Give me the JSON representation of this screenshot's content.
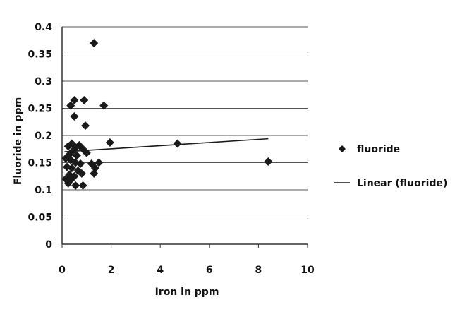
{
  "chart_data": {
    "type": "scatter",
    "xlabel": "Iron in ppm",
    "ylabel": "Fluoride in ppm",
    "xlim": [
      0,
      10
    ],
    "ylim": [
      0,
      0.4
    ],
    "x_ticks": [
      0,
      2,
      4,
      6,
      8,
      10
    ],
    "y_ticks": [
      0,
      0.05,
      0.1,
      0.15,
      0.2,
      0.25,
      0.3,
      0.35,
      0.4
    ],
    "x_tick_labels": [
      "0",
      "2",
      "4",
      "6",
      "8",
      "10"
    ],
    "y_tick_labels": [
      "0",
      "0.05",
      "0.1",
      "0.15",
      "0.2",
      "0.25",
      "0.3",
      "0.35",
      "0.4"
    ],
    "grid": "horizontal",
    "legend_position": "right",
    "series": [
      {
        "name": "fluoride",
        "marker": "diamond",
        "color": "#1a1a1a",
        "points": [
          {
            "x": 1.3,
            "y": 0.37
          },
          {
            "x": 0.5,
            "y": 0.265
          },
          {
            "x": 0.9,
            "y": 0.265
          },
          {
            "x": 0.35,
            "y": 0.255
          },
          {
            "x": 1.7,
            "y": 0.255
          },
          {
            "x": 0.5,
            "y": 0.235
          },
          {
            "x": 0.95,
            "y": 0.218
          },
          {
            "x": 1.95,
            "y": 0.187
          },
          {
            "x": 4.7,
            "y": 0.185
          },
          {
            "x": 8.4,
            "y": 0.152
          },
          {
            "x": 0.25,
            "y": 0.18
          },
          {
            "x": 0.4,
            "y": 0.185
          },
          {
            "x": 0.55,
            "y": 0.178
          },
          {
            "x": 0.7,
            "y": 0.182
          },
          {
            "x": 0.85,
            "y": 0.175
          },
          {
            "x": 1.0,
            "y": 0.168
          },
          {
            "x": 0.3,
            "y": 0.165
          },
          {
            "x": 0.45,
            "y": 0.172
          },
          {
            "x": 0.6,
            "y": 0.163
          },
          {
            "x": 0.15,
            "y": 0.158
          },
          {
            "x": 0.35,
            "y": 0.155
          },
          {
            "x": 0.55,
            "y": 0.15
          },
          {
            "x": 0.75,
            "y": 0.148
          },
          {
            "x": 0.2,
            "y": 0.142
          },
          {
            "x": 0.4,
            "y": 0.14
          },
          {
            "x": 0.65,
            "y": 0.135
          },
          {
            "x": 1.2,
            "y": 0.148
          },
          {
            "x": 1.35,
            "y": 0.14
          },
          {
            "x": 1.5,
            "y": 0.15
          },
          {
            "x": 1.3,
            "y": 0.13
          },
          {
            "x": 0.3,
            "y": 0.128
          },
          {
            "x": 0.5,
            "y": 0.125
          },
          {
            "x": 0.8,
            "y": 0.13
          },
          {
            "x": 0.15,
            "y": 0.12
          },
          {
            "x": 0.35,
            "y": 0.118
          },
          {
            "x": 0.55,
            "y": 0.108
          },
          {
            "x": 0.85,
            "y": 0.108
          },
          {
            "x": 0.25,
            "y": 0.112
          }
        ]
      },
      {
        "name": "Linear (fluoride)",
        "type": "line",
        "color": "#1a1a1a",
        "points": [
          {
            "x": 0.1,
            "y": 0.17
          },
          {
            "x": 8.4,
            "y": 0.194
          }
        ]
      }
    ]
  }
}
